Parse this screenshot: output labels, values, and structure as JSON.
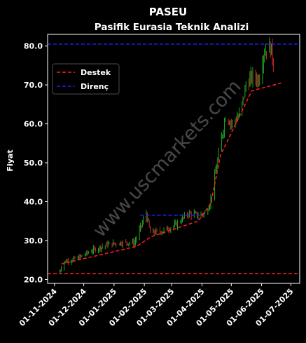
{
  "chart_data": {
    "type": "line",
    "title": "PASEU",
    "subtitle": "Pasifik Eurasia Teknik Analizi",
    "ylabel": "Fiyat",
    "xlabel": "",
    "watermark": "www.uscmarkets.com",
    "ylim": [
      19.0,
      83.0
    ],
    "yticks": [
      20.0,
      30.0,
      40.0,
      50.0,
      60.0,
      70.0,
      80.0
    ],
    "ytick_labels": [
      "20.0",
      "30.0",
      "40.0",
      "50.0",
      "60.0",
      "70.0",
      "80.0"
    ],
    "xlim": [
      "2024-10-25",
      "2025-07-10"
    ],
    "xticks": [
      "2024-11-01",
      "2024-12-01",
      "2025-01-01",
      "2025-02-01",
      "2025-03-01",
      "2025-04-01",
      "2025-05-01",
      "2025-06-01",
      "2025-07-01"
    ],
    "xtick_labels": [
      "01-11-2024",
      "01-12-2024",
      "01-01-2025",
      "01-02-2025",
      "01-03-2025",
      "01-04-2025",
      "01-05-2025",
      "01-06-2025",
      "01-07-2025"
    ],
    "legend": {
      "placement": "upper-left",
      "entries": [
        {
          "label": "Destek",
          "color": "#ff2020"
        },
        {
          "label": "Direnç",
          "color": "#2020ff"
        }
      ]
    },
    "horizontal_lines": [
      {
        "name": "Destek",
        "y": 21.5,
        "color": "#ff2020"
      },
      {
        "name": "Direnç",
        "y": 80.5,
        "color": "#2020ff"
      }
    ],
    "support_trend": {
      "color": "#ff2020",
      "points": [
        {
          "x": "2024-11-08",
          "y": 24.0
        },
        {
          "x": "2025-01-24",
          "y": 28.5
        },
        {
          "x": "2025-02-08",
          "y": 31.0
        },
        {
          "x": "2025-03-28",
          "y": 35.0
        },
        {
          "x": "2025-04-10",
          "y": 39.5
        },
        {
          "x": "2025-04-20",
          "y": 52.0
        },
        {
          "x": "2025-05-22",
          "y": 68.5
        },
        {
          "x": "2025-06-21",
          "y": 70.5
        }
      ]
    },
    "resistance_trend": {
      "color": "#2020ff",
      "points": [
        {
          "x": "2025-01-28",
          "y": 36.5
        },
        {
          "x": "2025-04-02",
          "y": 36.5
        }
      ]
    },
    "price_anchors": [
      {
        "x": "2024-11-06",
        "y": 22.0
      },
      {
        "x": "2024-11-10",
        "y": 24.5
      },
      {
        "x": "2024-11-25",
        "y": 25.5
      },
      {
        "x": "2024-12-10",
        "y": 27.5
      },
      {
        "x": "2024-12-25",
        "y": 29.0
      },
      {
        "x": "2025-01-10",
        "y": 29.5
      },
      {
        "x": "2025-01-22",
        "y": 29.5
      },
      {
        "x": "2025-01-30",
        "y": 34.5
      },
      {
        "x": "2025-02-03",
        "y": 37.0
      },
      {
        "x": "2025-02-07",
        "y": 32.0
      },
      {
        "x": "2025-02-20",
        "y": 32.5
      },
      {
        "x": "2025-03-05",
        "y": 34.0
      },
      {
        "x": "2025-03-18",
        "y": 37.0
      },
      {
        "x": "2025-03-28",
        "y": 36.5
      },
      {
        "x": "2025-04-05",
        "y": 37.0
      },
      {
        "x": "2025-04-10",
        "y": 40.5
      },
      {
        "x": "2025-04-18",
        "y": 52.0
      },
      {
        "x": "2025-04-25",
        "y": 62.0
      },
      {
        "x": "2025-05-02",
        "y": 60.0
      },
      {
        "x": "2025-05-10",
        "y": 62.5
      },
      {
        "x": "2025-05-16",
        "y": 70.0
      },
      {
        "x": "2025-05-22",
        "y": 72.0
      },
      {
        "x": "2025-05-29",
        "y": 71.5
      },
      {
        "x": "2025-06-03",
        "y": 78.0
      },
      {
        "x": "2025-06-07",
        "y": 80.0
      },
      {
        "x": "2025-06-11",
        "y": 79.0
      },
      {
        "x": "2025-06-15",
        "y": 72.0
      }
    ],
    "colors": {
      "up": "#1faa1f",
      "down": "#d42a2a",
      "axis": "#ffffff",
      "background": "#000000"
    }
  }
}
